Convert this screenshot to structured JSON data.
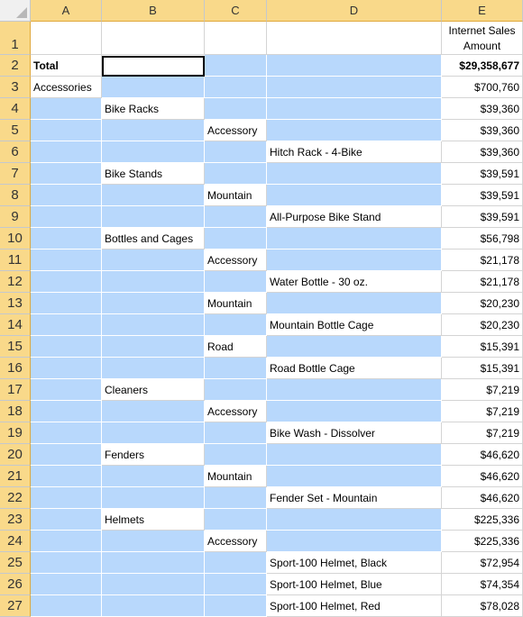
{
  "columns": [
    "A",
    "B",
    "C",
    "D",
    "E"
  ],
  "header_row": {
    "number": "1",
    "measure_label": "Internet Sales Amount"
  },
  "rows": [
    {
      "n": "2",
      "a": "Total",
      "b": "",
      "c": "",
      "d": "",
      "e": "$29,358,677"
    },
    {
      "n": "3",
      "a": "Accessories",
      "b": "",
      "c": "",
      "d": "",
      "e": "$700,760"
    },
    {
      "n": "4",
      "a": "",
      "b": "Bike Racks",
      "c": "",
      "d": "",
      "e": "$39,360"
    },
    {
      "n": "5",
      "a": "",
      "b": "",
      "c": "Accessory",
      "d": "",
      "e": "$39,360"
    },
    {
      "n": "6",
      "a": "",
      "b": "",
      "c": "",
      "d": "Hitch Rack - 4-Bike",
      "e": "$39,360"
    },
    {
      "n": "7",
      "a": "",
      "b": "Bike Stands",
      "c": "",
      "d": "",
      "e": "$39,591"
    },
    {
      "n": "8",
      "a": "",
      "b": "",
      "c": "Mountain",
      "d": "",
      "e": "$39,591"
    },
    {
      "n": "9",
      "a": "",
      "b": "",
      "c": "",
      "d": "All-Purpose Bike Stand",
      "e": "$39,591"
    },
    {
      "n": "10",
      "a": "",
      "b": "Bottles and Cages",
      "c": "",
      "d": "",
      "e": "$56,798"
    },
    {
      "n": "11",
      "a": "",
      "b": "",
      "c": "Accessory",
      "d": "",
      "e": "$21,178"
    },
    {
      "n": "12",
      "a": "",
      "b": "",
      "c": "",
      "d": "Water Bottle - 30 oz.",
      "e": "$21,178"
    },
    {
      "n": "13",
      "a": "",
      "b": "",
      "c": "Mountain",
      "d": "",
      "e": "$20,230"
    },
    {
      "n": "14",
      "a": "",
      "b": "",
      "c": "",
      "d": "Mountain Bottle Cage",
      "e": "$20,230"
    },
    {
      "n": "15",
      "a": "",
      "b": "",
      "c": "Road",
      "d": "",
      "e": "$15,391"
    },
    {
      "n": "16",
      "a": "",
      "b": "",
      "c": "",
      "d": "Road Bottle Cage",
      "e": "$15,391"
    },
    {
      "n": "17",
      "a": "",
      "b": "Cleaners",
      "c": "",
      "d": "",
      "e": "$7,219"
    },
    {
      "n": "18",
      "a": "",
      "b": "",
      "c": "Accessory",
      "d": "",
      "e": "$7,219"
    },
    {
      "n": "19",
      "a": "",
      "b": "",
      "c": "",
      "d": "Bike Wash - Dissolver",
      "e": "$7,219"
    },
    {
      "n": "20",
      "a": "",
      "b": "Fenders",
      "c": "",
      "d": "",
      "e": "$46,620"
    },
    {
      "n": "21",
      "a": "",
      "b": "",
      "c": "Mountain",
      "d": "",
      "e": "$46,620"
    },
    {
      "n": "22",
      "a": "",
      "b": "",
      "c": "",
      "d": "Fender Set - Mountain",
      "e": "$46,620"
    },
    {
      "n": "23",
      "a": "",
      "b": "Helmets",
      "c": "",
      "d": "",
      "e": "$225,336"
    },
    {
      "n": "24",
      "a": "",
      "b": "",
      "c": "Accessory",
      "d": "",
      "e": "$225,336"
    },
    {
      "n": "25",
      "a": "",
      "b": "",
      "c": "",
      "d": "Sport-100 Helmet, Black",
      "e": "$72,954"
    },
    {
      "n": "26",
      "a": "",
      "b": "",
      "c": "",
      "d": "Sport-100 Helmet, Blue",
      "e": "$74,354"
    },
    {
      "n": "27",
      "a": "",
      "b": "",
      "c": "",
      "d": "Sport-100 Helmet, Red",
      "e": "$78,028"
    }
  ],
  "colors": {
    "selection_fill": "#b8d8fc",
    "header_highlight": "#f9d98a",
    "gridline": "#d4d4d4"
  }
}
